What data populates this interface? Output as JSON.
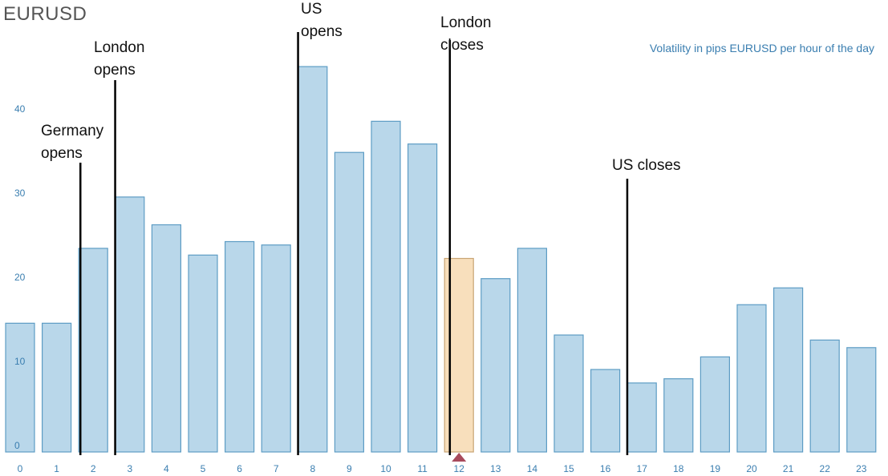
{
  "chart_data": {
    "type": "bar",
    "title": "EURUSD",
    "subtitle": "Volatility in pips EURUSD per hour of the day",
    "categories": [
      "0",
      "1",
      "2",
      "3",
      "4",
      "5",
      "6",
      "7",
      "8",
      "9",
      "10",
      "11",
      "12",
      "13",
      "14",
      "15",
      "16",
      "17",
      "18",
      "19",
      "20",
      "21",
      "22",
      "23"
    ],
    "values": [
      15.3,
      15.3,
      24.2,
      30.3,
      27.0,
      23.4,
      25.0,
      24.6,
      45.8,
      35.6,
      39.3,
      36.6,
      23.0,
      20.6,
      24.2,
      13.9,
      9.8,
      8.2,
      8.7,
      11.3,
      17.5,
      19.5,
      13.3,
      12.4
    ],
    "highlighted_category": "12",
    "ylim": [
      0,
      50
    ],
    "yticks": [
      "0",
      "10",
      "20",
      "30",
      "40"
    ],
    "xlabel": "",
    "ylabel": "",
    "colors": {
      "bar_fill": "#b9d7ea",
      "bar_stroke": "#5d9cc4",
      "highlight_fill": "#f8dfbc",
      "highlight_stroke": "#c8a474",
      "marker": "#a84a5c",
      "tick_text": "#3a7eb0",
      "annotation_line": "#000000"
    },
    "annotations": [
      {
        "id": "germany-opens",
        "line1": "Germany",
        "line2": "opens",
        "at": 1.65
      },
      {
        "id": "london-opens",
        "line1": "London",
        "line2": "opens",
        "at": 2.6
      },
      {
        "id": "us-opens",
        "line1": "US",
        "line2": "opens",
        "at": 7.6
      },
      {
        "id": "london-closes",
        "line1": "London",
        "line2": "closes",
        "at": 11.75
      },
      {
        "id": "us-closes",
        "line1": "US closes",
        "line2": "",
        "at": 16.6
      }
    ]
  }
}
